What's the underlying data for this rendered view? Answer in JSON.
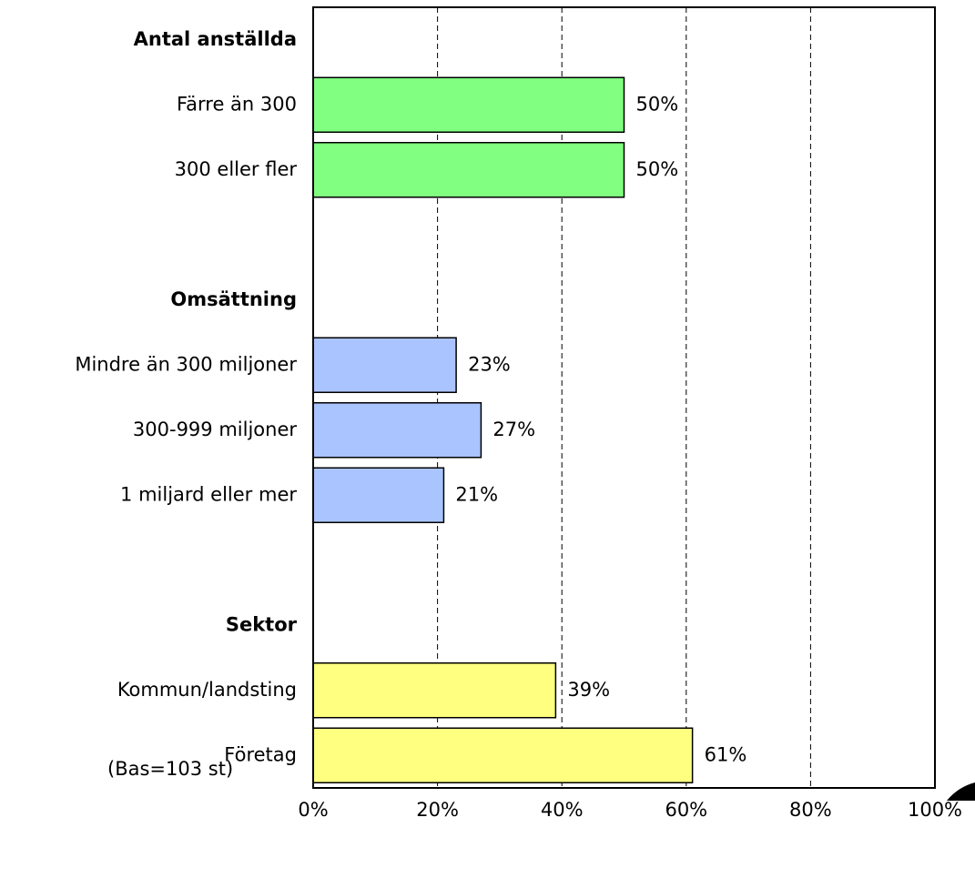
{
  "chart_data": {
    "type": "bar",
    "groups": [
      {
        "name": "Antal anställda",
        "color": "#80ff80",
        "categories": [
          "Färre än 300",
          "300 eller fler"
        ],
        "values": [
          50,
          50
        ],
        "value_labels": [
          "50%",
          "50%"
        ]
      },
      {
        "name": "Omsättning",
        "color": "#aac4ff",
        "categories": [
          "Mindre än 300 miljoner",
          "300-999 miljoner",
          "1 miljard eller mer"
        ],
        "values": [
          23,
          27,
          21
        ],
        "value_labels": [
          "23%",
          "27%",
          "21%"
        ]
      },
      {
        "name": "Sektor",
        "color": "#ffff80",
        "categories": [
          "Kommun/landsting",
          "Företag"
        ],
        "values": [
          39,
          61
        ],
        "value_labels": [
          "39%",
          "61%"
        ]
      }
    ],
    "xlim": [
      0,
      100
    ],
    "xticks": [
      {
        "value": 0,
        "label": "0%"
      },
      {
        "value": 20,
        "label": "20%"
      },
      {
        "value": 40,
        "label": "40%"
      },
      {
        "value": 60,
        "label": "60%"
      },
      {
        "value": 80,
        "label": "80%"
      },
      {
        "value": 100,
        "label": "100%"
      }
    ],
    "grid": true,
    "note": "(Bas=103 st)"
  }
}
